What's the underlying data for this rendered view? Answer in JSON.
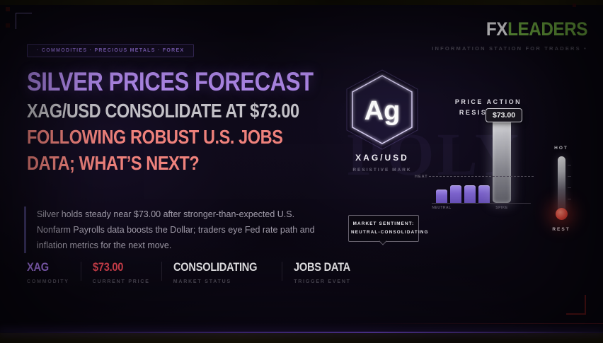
{
  "brand": {
    "name_primary": "FX",
    "name_secondary": "LEADERS",
    "tagline": "INFORMATION STATION FOR TRADERS •",
    "brand_green": "#72b043"
  },
  "breadcrumb": {
    "label": "· COMMODITIES · PRECIOUS METALS · FOREX"
  },
  "headline": {
    "line1": "SILVER PRICES FORECAST",
    "line2": "XAG/USD CONSOLIDATE AT $73.00",
    "line3": "FOLLOWING ROBUST U.S. JOBS",
    "line4": "DATA; WHAT’S NEXT?",
    "color_line1": "#b48cf0",
    "color_line2": "#c8c6cc",
    "color_line34": "#ef827c"
  },
  "summary": {
    "text": "Silver holds steady near $73.00 after stronger-than-expected U.S. Nonfarm Payrolls data boosts the Dollar; traders eye Fed rate path and inflation metrics for the next move."
  },
  "stats": [
    {
      "value": "XAG",
      "label": "COMMODITY",
      "color": "#a678e8"
    },
    {
      "value": "$73.00",
      "label": "CURRENT PRICE",
      "color": "#dd4450"
    },
    {
      "value": "CONSOLIDATING",
      "label": "MARKET STATUS",
      "color": "#f2f1f4"
    },
    {
      "value": "JOBS DATA",
      "label": "TRIGGER EVENT",
      "color": "#f2f1f4"
    }
  ],
  "symbol_card": {
    "element_symbol": "Ag",
    "pair": "XAG/USD",
    "subtitle": "RESISTIVE MARK"
  },
  "chart_data": {
    "type": "bar",
    "title_line1": "PRICE ACTION",
    "title_line2": "RESISTANCE",
    "price_tag": "$73.00",
    "categories": [
      "NEUTRAL",
      "",
      "",
      "",
      "SPIKE"
    ],
    "values": [
      19,
      25,
      25,
      25,
      127
    ],
    "ylim": [
      0,
      127
    ],
    "highlight_index": 4,
    "bar_color": "#7c63cc",
    "highlight_color": "#c2c2c8",
    "heat_line": {
      "label": "HEAT",
      "value": 37
    },
    "legend": "off",
    "grid": "off"
  },
  "sentiment": {
    "line1": "MARKET SENTIMENT:",
    "line2": "NEUTRAL-CONSOLIDATING"
  },
  "gauge": {
    "top_label": "HOT",
    "bottom_label": "REST",
    "bulb_color": "#e04438"
  },
  "watermark": {
    "text": "POLY"
  }
}
